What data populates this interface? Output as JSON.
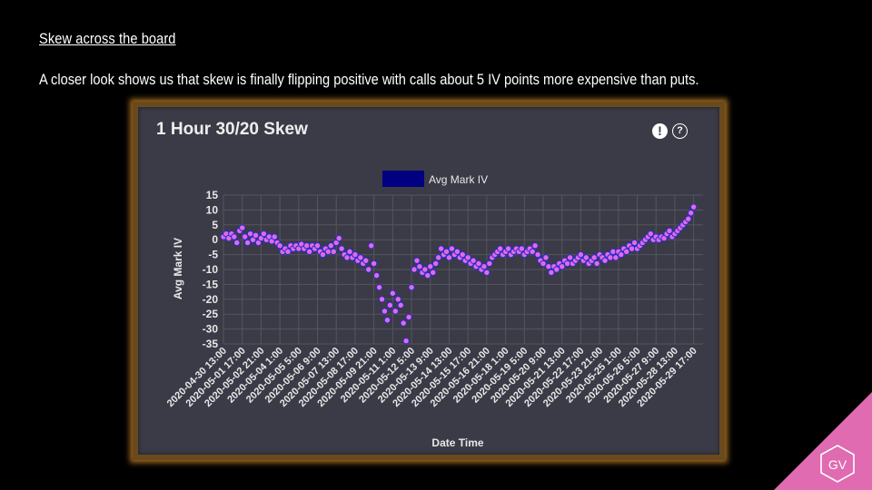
{
  "slide": {
    "heading": "Skew across the board",
    "body": "A closer look shows us that skew is finally flipping positive with calls about 5 IV points more expensive than puts."
  },
  "widget": {
    "title": "1 Hour 30/20 Skew",
    "alert_icon": "alert-icon",
    "help_icon": "help-icon"
  },
  "logo": {
    "text": "GV",
    "color": "#e06bb0"
  },
  "chart_data": {
    "type": "scatter",
    "title": "1 Hour 30/20 Skew",
    "xlabel": "Date Time",
    "ylabel": "Avg Mark IV",
    "legend": {
      "label": "Avg Mark IV",
      "placement": "top-center",
      "swatch_color": "#000080"
    },
    "ylim": [
      -35,
      15
    ],
    "yticks": [
      15,
      10,
      5,
      0,
      -5,
      -10,
      -15,
      -20,
      -25,
      -30,
      -35
    ],
    "xlim": [
      "2020-04-30 13:00",
      "2020-05-30 07:00"
    ],
    "xticks": [
      "2020-04-30 13:00",
      "2020-05-01 17:00",
      "2020-05-02 21:00",
      "2020-05-04 1:00",
      "2020-05-05 5:00",
      "2020-05-06 9:00",
      "2020-05-07 13:00",
      "2020-05-08 17:00",
      "2020-05-09 21:00",
      "2020-05-11 1:00",
      "2020-05-12 5:00",
      "2020-05-13 9:00",
      "2020-05-14 13:00",
      "2020-05-15 17:00",
      "2020-05-16 21:00",
      "2020-05-18 1:00",
      "2020-05-19 5:00",
      "2020-05-20 9:00",
      "2020-05-21 13:00",
      "2020-05-22 17:00",
      "2020-05-23 21:00",
      "2020-05-25 1:00",
      "2020-05-26 5:00",
      "2020-05-27 9:00",
      "2020-05-28 13:00",
      "2020-05-29 17:00"
    ],
    "grid": true,
    "point_color": "#e06be0",
    "point_edge_color": "#2a2ad0",
    "series": [
      {
        "name": "Avg Mark IV",
        "points": [
          [
            "2020-04-30 13:00",
            1
          ],
          [
            "2020-04-30 17:00",
            2
          ],
          [
            "2020-04-30 21:00",
            0.5
          ],
          [
            "2020-05-01 1:00",
            2
          ],
          [
            "2020-05-01 5:00",
            1
          ],
          [
            "2020-05-01 9:00",
            -1
          ],
          [
            "2020-05-01 13:00",
            3
          ],
          [
            "2020-05-01 17:00",
            4
          ],
          [
            "2020-05-01 21:00",
            1
          ],
          [
            "2020-05-02 1:00",
            -1
          ],
          [
            "2020-05-02 5:00",
            2
          ],
          [
            "2020-05-02 9:00",
            0
          ],
          [
            "2020-05-02 13:00",
            1.5
          ],
          [
            "2020-05-02 17:00",
            -1
          ],
          [
            "2020-05-02 21:00",
            0.5
          ],
          [
            "2020-05-03 1:00",
            2
          ],
          [
            "2020-05-03 5:00",
            0
          ],
          [
            "2020-05-03 9:00",
            1
          ],
          [
            "2020-05-03 13:00",
            -0.5
          ],
          [
            "2020-05-03 17:00",
            1
          ],
          [
            "2020-05-03 21:00",
            -1
          ],
          [
            "2020-05-04 1:00",
            -2
          ],
          [
            "2020-05-04 5:00",
            -4
          ],
          [
            "2020-05-04 9:00",
            -3
          ],
          [
            "2020-05-04 13:00",
            -4
          ],
          [
            "2020-05-04 17:00",
            -2
          ],
          [
            "2020-05-04 21:00",
            -3
          ],
          [
            "2020-05-05 1:00",
            -2
          ],
          [
            "2020-05-05 5:00",
            -3
          ],
          [
            "2020-05-05 9:00",
            -1.5
          ],
          [
            "2020-05-05 13:00",
            -3
          ],
          [
            "2020-05-05 17:00",
            -2
          ],
          [
            "2020-05-05 21:00",
            -4
          ],
          [
            "2020-05-06 1:00",
            -2
          ],
          [
            "2020-05-06 5:00",
            -3
          ],
          [
            "2020-05-06 9:00",
            -2
          ],
          [
            "2020-05-06 13:00",
            -4
          ],
          [
            "2020-05-06 17:00",
            -5
          ],
          [
            "2020-05-06 21:00",
            -3
          ],
          [
            "2020-05-07 1:00",
            -4
          ],
          [
            "2020-05-07 5:00",
            -2
          ],
          [
            "2020-05-07 9:00",
            -4
          ],
          [
            "2020-05-07 13:00",
            -1
          ],
          [
            "2020-05-07 17:00",
            0.5
          ],
          [
            "2020-05-07 21:00",
            -3
          ],
          [
            "2020-05-08 1:00",
            -5
          ],
          [
            "2020-05-08 5:00",
            -6
          ],
          [
            "2020-05-08 9:00",
            -4
          ],
          [
            "2020-05-08 13:00",
            -6
          ],
          [
            "2020-05-08 17:00",
            -5
          ],
          [
            "2020-05-08 21:00",
            -7
          ],
          [
            "2020-05-09 1:00",
            -6
          ],
          [
            "2020-05-09 5:00",
            -8
          ],
          [
            "2020-05-09 9:00",
            -7
          ],
          [
            "2020-05-09 13:00",
            -10
          ],
          [
            "2020-05-09 17:00",
            -2
          ],
          [
            "2020-05-09 21:00",
            -8
          ],
          [
            "2020-05-10 1:00",
            -12
          ],
          [
            "2020-05-10 5:00",
            -16
          ],
          [
            "2020-05-10 9:00",
            -20
          ],
          [
            "2020-05-10 13:00",
            -24
          ],
          [
            "2020-05-10 17:00",
            -27
          ],
          [
            "2020-05-10 21:00",
            -22
          ],
          [
            "2020-05-11 1:00",
            -18
          ],
          [
            "2020-05-11 5:00",
            -24
          ],
          [
            "2020-05-11 9:00",
            -20
          ],
          [
            "2020-05-11 13:00",
            -22
          ],
          [
            "2020-05-11 17:00",
            -28
          ],
          [
            "2020-05-11 21:00",
            -34
          ],
          [
            "2020-05-12 1:00",
            -26
          ],
          [
            "2020-05-12 5:00",
            -16
          ],
          [
            "2020-05-12 9:00",
            -10
          ],
          [
            "2020-05-12 13:00",
            -7
          ],
          [
            "2020-05-12 17:00",
            -9
          ],
          [
            "2020-05-12 21:00",
            -11
          ],
          [
            "2020-05-13 1:00",
            -10
          ],
          [
            "2020-05-13 5:00",
            -12
          ],
          [
            "2020-05-13 9:00",
            -9
          ],
          [
            "2020-05-13 13:00",
            -11
          ],
          [
            "2020-05-13 17:00",
            -8
          ],
          [
            "2020-05-13 21:00",
            -6
          ],
          [
            "2020-05-14 1:00",
            -3
          ],
          [
            "2020-05-14 5:00",
            -5
          ],
          [
            "2020-05-14 9:00",
            -4
          ],
          [
            "2020-05-14 13:00",
            -6
          ],
          [
            "2020-05-14 17:00",
            -3
          ],
          [
            "2020-05-14 21:00",
            -5
          ],
          [
            "2020-05-15 1:00",
            -4
          ],
          [
            "2020-05-15 5:00",
            -6
          ],
          [
            "2020-05-15 9:00",
            -5
          ],
          [
            "2020-05-15 13:00",
            -7
          ],
          [
            "2020-05-15 17:00",
            -6
          ],
          [
            "2020-05-15 21:00",
            -8
          ],
          [
            "2020-05-16 1:00",
            -7
          ],
          [
            "2020-05-16 5:00",
            -9
          ],
          [
            "2020-05-16 9:00",
            -8
          ],
          [
            "2020-05-16 13:00",
            -10
          ],
          [
            "2020-05-16 17:00",
            -9
          ],
          [
            "2020-05-16 21:00",
            -11
          ],
          [
            "2020-05-17 1:00",
            -8
          ],
          [
            "2020-05-17 5:00",
            -6
          ],
          [
            "2020-05-17 9:00",
            -5
          ],
          [
            "2020-05-17 13:00",
            -4
          ],
          [
            "2020-05-17 17:00",
            -3
          ],
          [
            "2020-05-17 21:00",
            -5
          ],
          [
            "2020-05-18 1:00",
            -4
          ],
          [
            "2020-05-18 5:00",
            -3
          ],
          [
            "2020-05-18 9:00",
            -5
          ],
          [
            "2020-05-18 13:00",
            -4
          ],
          [
            "2020-05-18 17:00",
            -3
          ],
          [
            "2020-05-18 21:00",
            -4
          ],
          [
            "2020-05-19 1:00",
            -3
          ],
          [
            "2020-05-19 5:00",
            -5
          ],
          [
            "2020-05-19 9:00",
            -4
          ],
          [
            "2020-05-19 13:00",
            -3
          ],
          [
            "2020-05-19 17:00",
            -4
          ],
          [
            "2020-05-19 21:00",
            -2
          ],
          [
            "2020-05-20 1:00",
            -5
          ],
          [
            "2020-05-20 5:00",
            -7
          ],
          [
            "2020-05-20 9:00",
            -8
          ],
          [
            "2020-05-20 13:00",
            -6
          ],
          [
            "2020-05-20 17:00",
            -9
          ],
          [
            "2020-05-20 21:00",
            -11
          ],
          [
            "2020-05-21 1:00",
            -9
          ],
          [
            "2020-05-21 5:00",
            -10
          ],
          [
            "2020-05-21 9:00",
            -8
          ],
          [
            "2020-05-21 13:00",
            -9
          ],
          [
            "2020-05-21 17:00",
            -7
          ],
          [
            "2020-05-21 21:00",
            -8
          ],
          [
            "2020-05-22 1:00",
            -6
          ],
          [
            "2020-05-22 5:00",
            -8
          ],
          [
            "2020-05-22 9:00",
            -7
          ],
          [
            "2020-05-22 13:00",
            -6
          ],
          [
            "2020-05-22 17:00",
            -5
          ],
          [
            "2020-05-22 21:00",
            -7
          ],
          [
            "2020-05-23 1:00",
            -6
          ],
          [
            "2020-05-23 5:00",
            -8
          ],
          [
            "2020-05-23 9:00",
            -7
          ],
          [
            "2020-05-23 13:00",
            -6
          ],
          [
            "2020-05-23 17:00",
            -8
          ],
          [
            "2020-05-23 21:00",
            -5
          ],
          [
            "2020-05-24 1:00",
            -6
          ],
          [
            "2020-05-24 5:00",
            -7
          ],
          [
            "2020-05-24 9:00",
            -5
          ],
          [
            "2020-05-24 13:00",
            -6
          ],
          [
            "2020-05-24 17:00",
            -4
          ],
          [
            "2020-05-24 21:00",
            -6
          ],
          [
            "2020-05-25 1:00",
            -4
          ],
          [
            "2020-05-25 5:00",
            -5
          ],
          [
            "2020-05-25 9:00",
            -3
          ],
          [
            "2020-05-25 13:00",
            -4
          ],
          [
            "2020-05-25 17:00",
            -2
          ],
          [
            "2020-05-25 21:00",
            -3
          ],
          [
            "2020-05-26 1:00",
            -1
          ],
          [
            "2020-05-26 5:00",
            -3
          ],
          [
            "2020-05-26 9:00",
            -2
          ],
          [
            "2020-05-26 13:00",
            -1
          ],
          [
            "2020-05-26 17:00",
            0
          ],
          [
            "2020-05-26 21:00",
            1
          ],
          [
            "2020-05-27 1:00",
            2
          ],
          [
            "2020-05-27 5:00",
            0
          ],
          [
            "2020-05-27 9:00",
            1
          ],
          [
            "2020-05-27 13:00",
            0
          ],
          [
            "2020-05-27 17:00",
            1
          ],
          [
            "2020-05-27 21:00",
            0.5
          ],
          [
            "2020-05-28 1:00",
            2
          ],
          [
            "2020-05-28 5:00",
            3
          ],
          [
            "2020-05-28 9:00",
            1
          ],
          [
            "2020-05-28 13:00",
            2
          ],
          [
            "2020-05-28 17:00",
            3
          ],
          [
            "2020-05-28 21:00",
            4
          ],
          [
            "2020-05-29 1:00",
            5
          ],
          [
            "2020-05-29 5:00",
            6
          ],
          [
            "2020-05-29 9:00",
            7
          ],
          [
            "2020-05-29 13:00",
            9
          ],
          [
            "2020-05-29 17:00",
            11
          ]
        ]
      }
    ]
  }
}
